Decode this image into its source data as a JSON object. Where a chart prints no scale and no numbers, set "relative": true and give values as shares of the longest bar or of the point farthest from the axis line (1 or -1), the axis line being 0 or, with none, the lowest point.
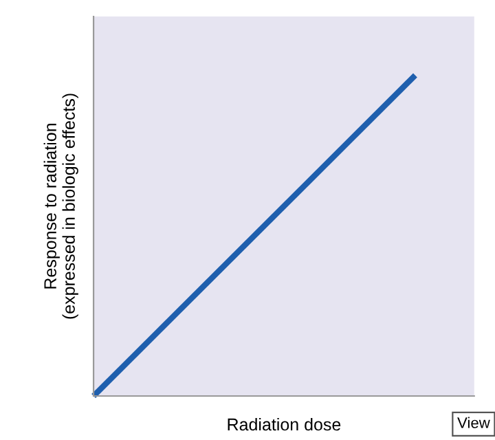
{
  "chart_data": {
    "type": "line",
    "relative": true,
    "xlabel": "Radiation dose",
    "ylabel": "Response to radiation\n(expressed in biologic effects)",
    "categories": [
      null,
      null
    ],
    "series": [
      {
        "color": "#1f5fae",
        "values": [
          0,
          1
        ]
      }
    ],
    "annotations": [
      "View"
    ],
    "grid": false,
    "legend": false,
    "marker": "none",
    "line_style": "solid"
  }
}
